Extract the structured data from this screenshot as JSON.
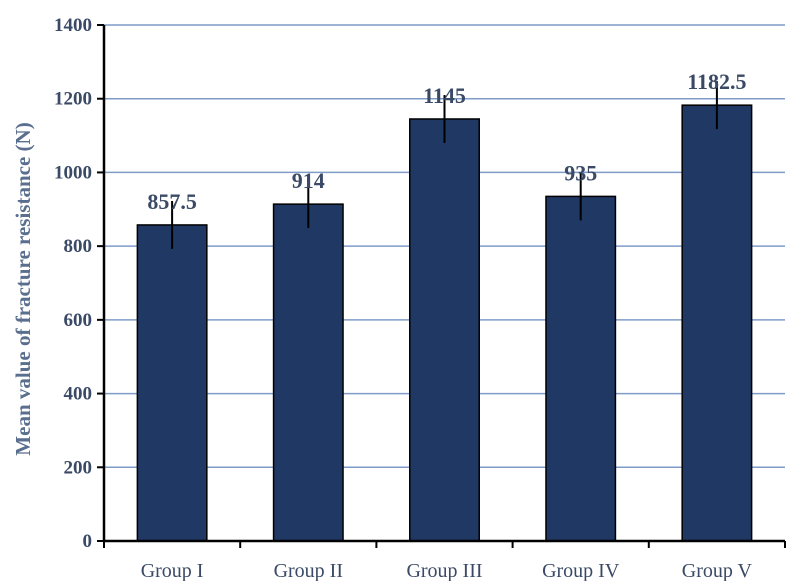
{
  "chart_data": {
    "type": "bar",
    "title": "",
    "xlabel": "",
    "ylabel": "Mean value of fracture resistance (N)",
    "categories": [
      "Group I",
      "Group II",
      "Group III",
      "Group IV",
      "Group V"
    ],
    "values": [
      857.5,
      914,
      1145,
      935,
      1182.5
    ],
    "data_labels": [
      "857.5",
      "914",
      "1145",
      "935",
      "1182.5"
    ],
    "error": [
      65,
      65,
      65,
      65,
      65
    ],
    "ylim": [
      0,
      1400
    ],
    "yticks": [
      0,
      200,
      400,
      600,
      800,
      1000,
      1200,
      1400
    ],
    "ytick_labels": [
      "0",
      "200",
      "400",
      "600",
      "800",
      "1000",
      "1200",
      "1400"
    ],
    "grid": true,
    "legend": "none",
    "colors": {
      "bar_fill": "#1f3864",
      "bar_stroke": "#000000",
      "grid": "#7f9cc8",
      "text": "#3a4a66",
      "ylabel_text": "#5a6e8e"
    }
  }
}
